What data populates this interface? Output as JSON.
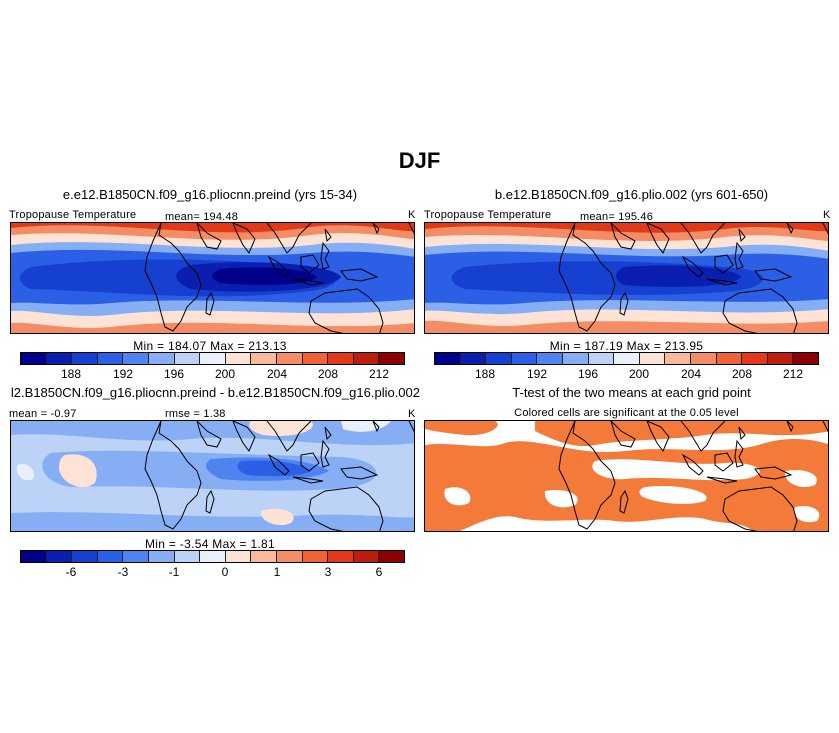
{
  "main_title": "DJF",
  "panels": {
    "top_left": {
      "title": "e.e12.B1850CN.f09_g16.pliocnn.preind (yrs 15-34)",
      "variable": "Tropopause Temperature",
      "mean": "mean= 194.48",
      "units": "K",
      "minmax": "Min = 184.07 Max = 213.13"
    },
    "top_right": {
      "title": "b.e12.B1850CN.f09_g16.plio.002 (yrs 601-650)",
      "variable": "Tropopause Temperature",
      "mean": "mean= 195.46",
      "units": "K",
      "minmax": "Min = 187.19 Max = 213.95"
    },
    "bottom_left": {
      "title": "l2.B1850CN.f09_g16.pliocnn.preind - b.e12.B1850CN.f09_g16.plio.002",
      "mean": "mean =  -0.97",
      "rmse": "rmse =   1.38",
      "units": "K",
      "minmax": "Min =  -3.54 Max =   1.81"
    },
    "bottom_right": {
      "title": "T-test of the two means at each grid point",
      "subtitle": "Colored cells are significant at the 0.05 level"
    }
  },
  "colorbars": {
    "absolute": {
      "colors": [
        "#00008b",
        "#0a1fb0",
        "#1640d0",
        "#2a5fe6",
        "#4f84f0",
        "#86aef4",
        "#bcd3f7",
        "#e9f0fb",
        "#fde3d5",
        "#f9b99a",
        "#f48d65",
        "#ef6337",
        "#e03a18",
        "#b91f0c",
        "#8b0000"
      ],
      "ticks": [
        "188",
        "192",
        "196",
        "200",
        "204",
        "208",
        "212"
      ]
    },
    "difference": {
      "colors": [
        "#00008b",
        "#0a1fb0",
        "#1640d0",
        "#2a5fe6",
        "#4f84f0",
        "#86aef4",
        "#bcd3f7",
        "#e9f0fb",
        "#fde3d5",
        "#f9b99a",
        "#f48d65",
        "#ef6337",
        "#e03a18",
        "#b91f0c",
        "#8b0000"
      ],
      "ticks": [
        "-6",
        "-3",
        "-1",
        "0",
        "1",
        "3",
        "6"
      ]
    }
  },
  "significance_color": "#f47a3a"
}
